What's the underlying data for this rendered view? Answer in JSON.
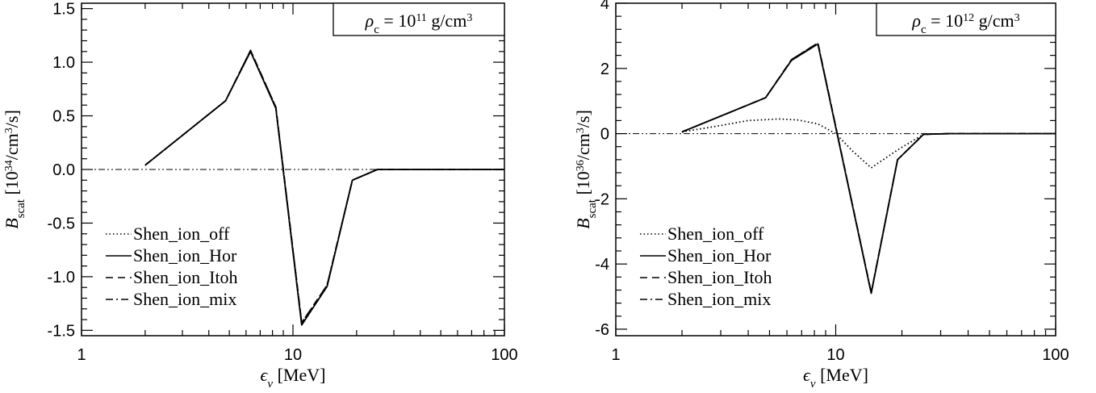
{
  "figure_title": "",
  "chart_data": [
    {
      "type": "line",
      "title": "",
      "annotation": {
        "pre": "ρ",
        "sub": "c",
        "mid": " = 10",
        "sup": "11",
        "post": " g/cm",
        "sup2": "3"
      },
      "xlabel": {
        "sym": "ϵ",
        "sub": "ν",
        "post": " [MeV]"
      },
      "ylabel": {
        "sym": "B",
        "sub": "scat",
        "pre": " [10",
        "sup": "34",
        "mid": "/cm",
        "sup2": "3",
        "post": "/s]"
      },
      "xscale": "log",
      "xlim": [
        1,
        100
      ],
      "ylim": [
        -1.55,
        1.55
      ],
      "xticks": [
        1,
        10,
        100
      ],
      "xtick_labels": [
        "1",
        "10",
        "100"
      ],
      "yticks": [
        -1.5,
        -1.0,
        -0.5,
        0.0,
        0.5,
        1.0,
        1.5
      ],
      "ytick_labels": [
        "-1.5",
        "-1.0",
        "-0.5",
        "0.0",
        "0.5",
        "1.0",
        "1.5"
      ],
      "zero_line": true,
      "legend_placement": "bottom-left",
      "series": [
        {
          "name": "Shen_ion_off",
          "style": "dotted",
          "x": [
            2.0,
            4.8,
            6.3,
            8.3,
            11.0,
            14.5,
            19.1,
            25.1,
            33.0,
            50.0,
            100.0
          ],
          "y": [
            0.04,
            0.64,
            1.1,
            0.57,
            -1.45,
            -1.09,
            -0.1,
            0.0,
            0.0,
            0.0,
            0.0
          ]
        },
        {
          "name": "Shen_ion_Hor",
          "style": "solid",
          "x": [
            2.0,
            4.8,
            6.3,
            8.3,
            11.0,
            14.5,
            19.1,
            25.1,
            33.0,
            50.0,
            100.0
          ],
          "y": [
            0.04,
            0.64,
            1.1,
            0.57,
            -1.45,
            -1.09,
            -0.1,
            0.0,
            0.0,
            0.0,
            0.0
          ]
        },
        {
          "name": "Shen_ion_Itoh",
          "style": "dashed",
          "x": [
            2.0,
            4.8,
            6.3,
            8.3,
            11.0,
            14.5,
            19.1,
            25.1,
            33.0,
            50.0,
            100.0
          ],
          "y": [
            0.04,
            0.64,
            1.11,
            0.58,
            -1.43,
            -1.08,
            -0.1,
            0.0,
            0.0,
            0.0,
            0.0
          ]
        },
        {
          "name": "Shen_ion_mix",
          "style": "dashdot",
          "x": [
            2.0,
            4.8,
            6.3,
            8.3,
            11.0,
            14.5,
            19.1,
            25.1,
            33.0,
            50.0,
            100.0
          ],
          "y": [
            0.04,
            0.64,
            1.11,
            0.58,
            -1.43,
            -1.08,
            -0.1,
            0.0,
            0.0,
            0.0,
            0.0
          ]
        }
      ]
    },
    {
      "type": "line",
      "title": "",
      "annotation": {
        "pre": "ρ",
        "sub": "c",
        "mid": " = 10",
        "sup": "12",
        "post": " g/cm",
        "sup2": "3"
      },
      "xlabel": {
        "sym": "ϵ",
        "sub": "ν",
        "post": " [MeV]"
      },
      "ylabel": {
        "sym": "B",
        "sub": "scat",
        "pre": " [10",
        "sup": "36",
        "mid": "/cm",
        "sup2": "3",
        "post": "/s]"
      },
      "xscale": "log",
      "xlim": [
        1,
        100
      ],
      "ylim": [
        -6.2,
        4.0
      ],
      "xticks": [
        1,
        10,
        100
      ],
      "xtick_labels": [
        "1",
        "10",
        "100"
      ],
      "yticks": [
        -6,
        -4,
        -2,
        0,
        2,
        4
      ],
      "ytick_labels": [
        "-6",
        "-4",
        "-2",
        "0",
        "2",
        "4"
      ],
      "zero_line": true,
      "legend_placement": "bottom-left",
      "series": [
        {
          "name": "Shen_ion_off",
          "style": "dotted",
          "x": [
            2.0,
            3.0,
            4.0,
            5.5,
            6.7,
            8.3,
            10.0,
            12.0,
            14.5,
            19.1,
            25.1,
            33.0,
            50.0,
            100.0
          ],
          "y": [
            0.05,
            0.25,
            0.4,
            0.45,
            0.42,
            0.3,
            0.0,
            -0.55,
            -1.05,
            -0.5,
            -0.02,
            0.0,
            0.0,
            0.0
          ]
        },
        {
          "name": "Shen_ion_Hor",
          "style": "solid",
          "x": [
            2.0,
            4.8,
            6.3,
            8.3,
            14.5,
            19.1,
            25.1,
            33.0,
            50.0,
            100.0
          ],
          "y": [
            0.05,
            1.1,
            2.25,
            2.75,
            -4.9,
            -0.8,
            -0.02,
            0.0,
            0.0,
            0.0
          ]
        },
        {
          "name": "Shen_ion_Itoh",
          "style": "dashed",
          "x": [
            2.0,
            4.8,
            6.3,
            8.3,
            14.5,
            19.1,
            25.1,
            33.0,
            50.0,
            100.0
          ],
          "y": [
            0.05,
            1.1,
            2.27,
            2.78,
            -4.88,
            -0.8,
            -0.02,
            0.0,
            0.0,
            0.0
          ]
        },
        {
          "name": "Shen_ion_mix",
          "style": "dashdot",
          "x": [
            2.0,
            4.8,
            6.3,
            8.3,
            14.5,
            19.1,
            25.1,
            33.0,
            50.0,
            100.0
          ],
          "y": [
            0.05,
            1.1,
            2.27,
            2.78,
            -4.88,
            -0.8,
            -0.02,
            0.0,
            0.0,
            0.0
          ]
        }
      ]
    }
  ]
}
